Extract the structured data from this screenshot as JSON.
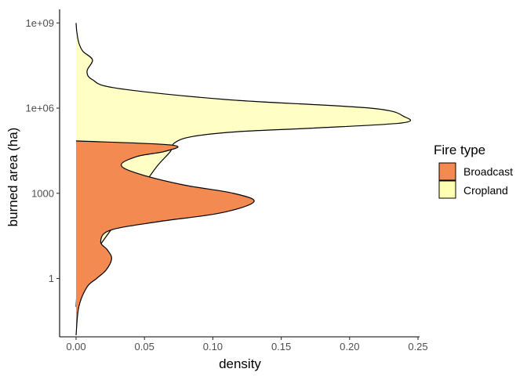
{
  "chart_data": {
    "type": "density",
    "orientation": "horizontal",
    "xlabel": "density",
    "ylabel": "burned area (ha)",
    "xlim": [
      0,
      0.25
    ],
    "x_ticks": [
      {
        "value": 0,
        "label": "0.00"
      },
      {
        "value": 0.05,
        "label": "0.05"
      },
      {
        "value": 0.1,
        "label": "0.10"
      },
      {
        "value": 0.15,
        "label": "0.15"
      },
      {
        "value": 0.2,
        "label": "0.20"
      },
      {
        "value": 0.25,
        "label": "0.25"
      }
    ],
    "y_scale": "log10",
    "ylim": [
      0.01,
      3000000000
    ],
    "y_ticks": [
      {
        "value": 1,
        "label": "1"
      },
      {
        "value": 1000,
        "label": "1000"
      },
      {
        "value": 1000000,
        "label": "1e+06"
      },
      {
        "value": 1000000000,
        "label": "1e+09"
      }
    ],
    "legend": {
      "title": "Fire type",
      "position": "right",
      "items": [
        {
          "label": "Broadcast",
          "color": "#F28A52"
        },
        {
          "label": "Cropland",
          "color": "#FFFFB2"
        }
      ]
    },
    "grid": false,
    "series": [
      {
        "name": "Cropland",
        "fill": "#FFFFB2",
        "fill_opacity": 0.75,
        "y": [
          0.1,
          0.5,
          1,
          3,
          10,
          30,
          100,
          300,
          1000,
          3000,
          10000,
          30000,
          60000,
          100000,
          150000,
          200000,
          300000,
          500000,
          1000000,
          2000000,
          5000000,
          10000000,
          20000000,
          50000000,
          100000000,
          200000000,
          500000000,
          1000000000
        ],
        "density": [
          0.0,
          0.001,
          0.003,
          0.008,
          0.015,
          0.022,
          0.03,
          0.038,
          0.045,
          0.052,
          0.06,
          0.069,
          0.072,
          0.085,
          0.12,
          0.175,
          0.238,
          0.24,
          0.215,
          0.11,
          0.03,
          0.012,
          0.008,
          0.012,
          0.005,
          0.002,
          0.0005,
          0.0
        ]
      },
      {
        "name": "Broadcast",
        "fill": "#F28A52",
        "fill_opacity": 1,
        "y": [
          0.01,
          0.1,
          0.5,
          1,
          2,
          5,
          10,
          20,
          50,
          100,
          200,
          500,
          1000,
          2000,
          5000,
          10000,
          20000,
          30000,
          50000,
          70000
        ],
        "density": [
          0.0,
          0.002,
          0.008,
          0.015,
          0.022,
          0.026,
          0.023,
          0.018,
          0.025,
          0.06,
          0.105,
          0.13,
          0.115,
          0.078,
          0.045,
          0.033,
          0.045,
          0.065,
          0.07,
          0.0
        ]
      }
    ]
  }
}
